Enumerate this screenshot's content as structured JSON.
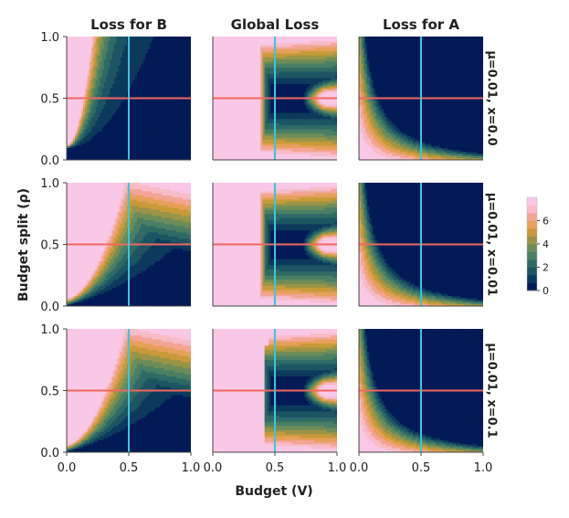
{
  "chart_data": {
    "type": "heatmap",
    "layout": "3x3 facet grid of filled contour plots",
    "column_titles": [
      "Loss for B",
      "Global Loss",
      "Loss for A"
    ],
    "row_titles": [
      "μ=0.01, x=0.0",
      "μ=0.01, x=0.01",
      "μ=0.01, x=0.1"
    ],
    "xlabel": "Budget (V)",
    "ylabel": "Budget split (ρ)",
    "xlim": [
      0,
      1
    ],
    "ylim": [
      0,
      1
    ],
    "xticks": [
      "0.0",
      "0.5",
      "1.0"
    ],
    "yticks": [
      "0.0",
      "0.5",
      "1.0"
    ],
    "vertical_reference_line": {
      "x": 0.5,
      "color": "#39c7dc"
    },
    "horizontal_reference_line": {
      "y": 0.5,
      "color": "#f0675f"
    },
    "colorbar": {
      "range": [
        0,
        8
      ],
      "ticks": [
        "0",
        "2",
        "4",
        "6"
      ],
      "colors": [
        "#021a56",
        "#0c3a5c",
        "#1d5563",
        "#2f6a66",
        "#4a7f64",
        "#6d8c58",
        "#9a9448",
        "#c79a3a",
        "#e6a05a",
        "#f3a593",
        "#f7bcc8",
        "#f9c8e6"
      ]
    },
    "grid": false
  }
}
